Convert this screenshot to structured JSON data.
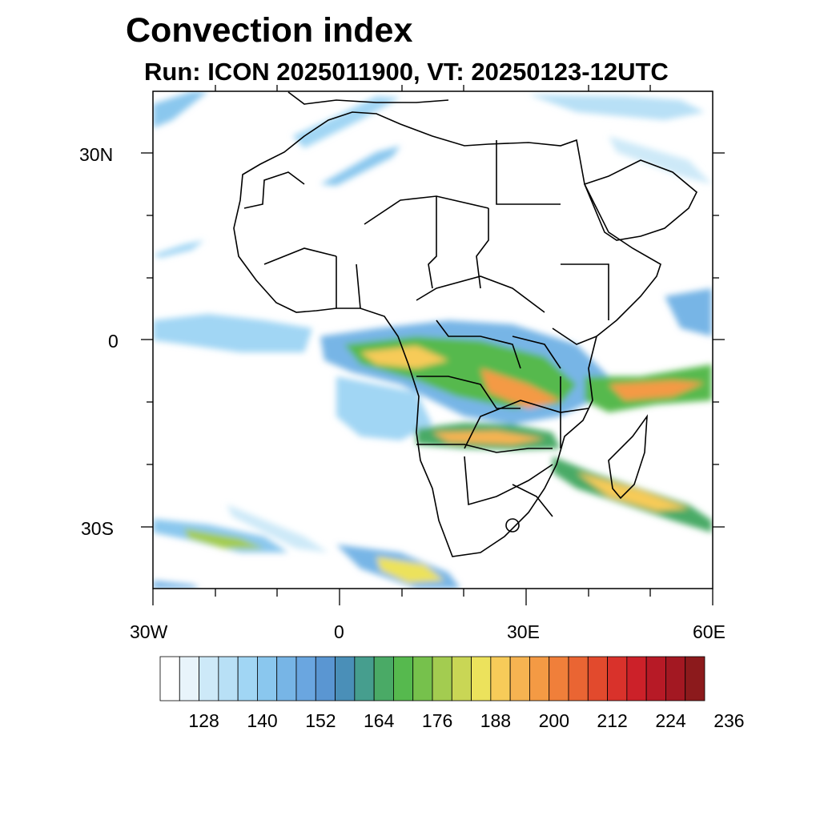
{
  "title": "Convection index",
  "subtitle": "Run: ICON 2025011900,  VT: 20250123-12UTC",
  "map": {
    "lat_labels": [
      "30N",
      "0",
      "30S"
    ],
    "lon_labels": [
      "30W",
      "0",
      "30E",
      "60E"
    ],
    "extent": {
      "lon_min": -30,
      "lon_max": 60,
      "lat_min": -40,
      "lat_max": 40
    }
  },
  "colorbar": {
    "labels": [
      "128",
      "140",
      "152",
      "164",
      "176",
      "188",
      "200",
      "212",
      "224",
      "236"
    ],
    "colors": [
      "#ffffff",
      "#e8f4fb",
      "#cde9f8",
      "#b8e0f6",
      "#a1d6f4",
      "#8ac7ee",
      "#77b5e6",
      "#6aa6e0",
      "#5a96d2",
      "#4a8fb8",
      "#469e8e",
      "#4aaa66",
      "#56b94e",
      "#76c14c",
      "#a3cc50",
      "#c9d655",
      "#ece25c",
      "#f7cb59",
      "#f6b351",
      "#f49a44",
      "#f07f3a",
      "#ea6533",
      "#e24a2d",
      "#d9322b",
      "#cc2129",
      "#b71a26",
      "#a31822",
      "#8c1a1c"
    ]
  }
}
